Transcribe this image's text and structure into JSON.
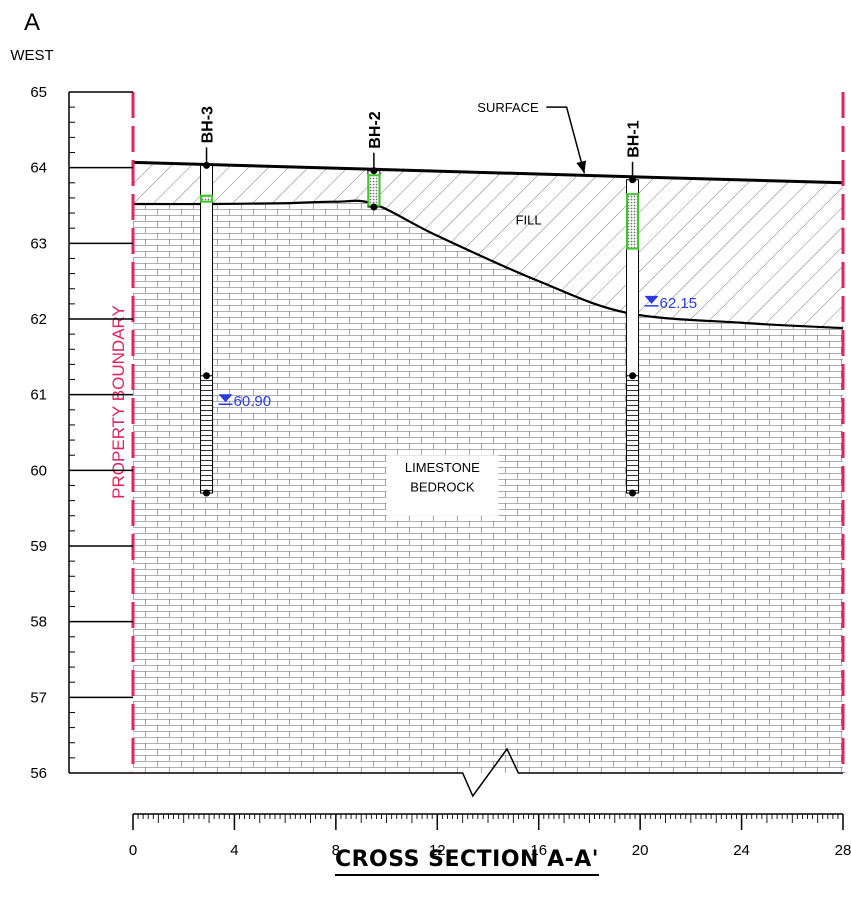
{
  "header": {
    "section_letter": "A",
    "direction": "WEST"
  },
  "title": "CROSS SECTION A-A'",
  "property_boundary_label": "PROPERTY BOUNDARY",
  "chart_data": {
    "type": "cross-section",
    "y_axis": {
      "min": 56,
      "max": 65,
      "step": 1,
      "minor_per_major": 5
    },
    "x_axis": {
      "min": 0,
      "max": 28,
      "major_step": 4,
      "minor_step": 0.2,
      "mid_step": 1
    },
    "ticks_y": [
      "65",
      "64",
      "63",
      "62",
      "61",
      "60",
      "59",
      "58",
      "57",
      "56"
    ],
    "ticks_x": [
      "0",
      "4",
      "8",
      "12",
      "16",
      "20",
      "24",
      "28"
    ],
    "surface_label": "SURFACE",
    "fill_label": "FILL",
    "bedrock_label_line1": "LIMESTONE",
    "bedrock_label_line2": "BEDROCK",
    "surface": [
      [
        0,
        64.07
      ],
      [
        28,
        63.8
      ]
    ],
    "bedrock_top": [
      [
        0,
        63.52
      ],
      [
        3,
        63.52
      ],
      [
        6,
        63.53
      ],
      [
        8,
        63.55
      ],
      [
        9.5,
        63.52
      ],
      [
        12,
        63.1
      ],
      [
        16,
        62.5
      ],
      [
        19.5,
        62.08
      ],
      [
        24,
        61.95
      ],
      [
        28,
        61.88
      ]
    ],
    "base_elevation": 56,
    "boreholes": [
      {
        "name": "BH-3",
        "x": 2.9,
        "top": 64.03,
        "bottom": 59.7,
        "seal_top": 63.63,
        "seal_bottom": 63.55,
        "screen_top": 61.25,
        "screen_bottom": 59.7,
        "water_level": "60.90",
        "water_elev": 60.9
      },
      {
        "name": "BH-2",
        "x": 9.5,
        "top": 63.96,
        "bottom": 63.48,
        "seal_top": 63.9,
        "seal_bottom": 63.5,
        "water_level": null
      },
      {
        "name": "BH-1",
        "x": 19.7,
        "top": 63.84,
        "bottom": 59.7,
        "seal_top": 63.65,
        "seal_bottom": 62.93,
        "screen_top": 61.25,
        "screen_bottom": 59.7,
        "water_level": "62.15",
        "water_elev": 62.2
      }
    ],
    "colors": {
      "boundary": "#e0245e",
      "seal": "#3fc82a",
      "water": "#2a3ce0"
    }
  }
}
